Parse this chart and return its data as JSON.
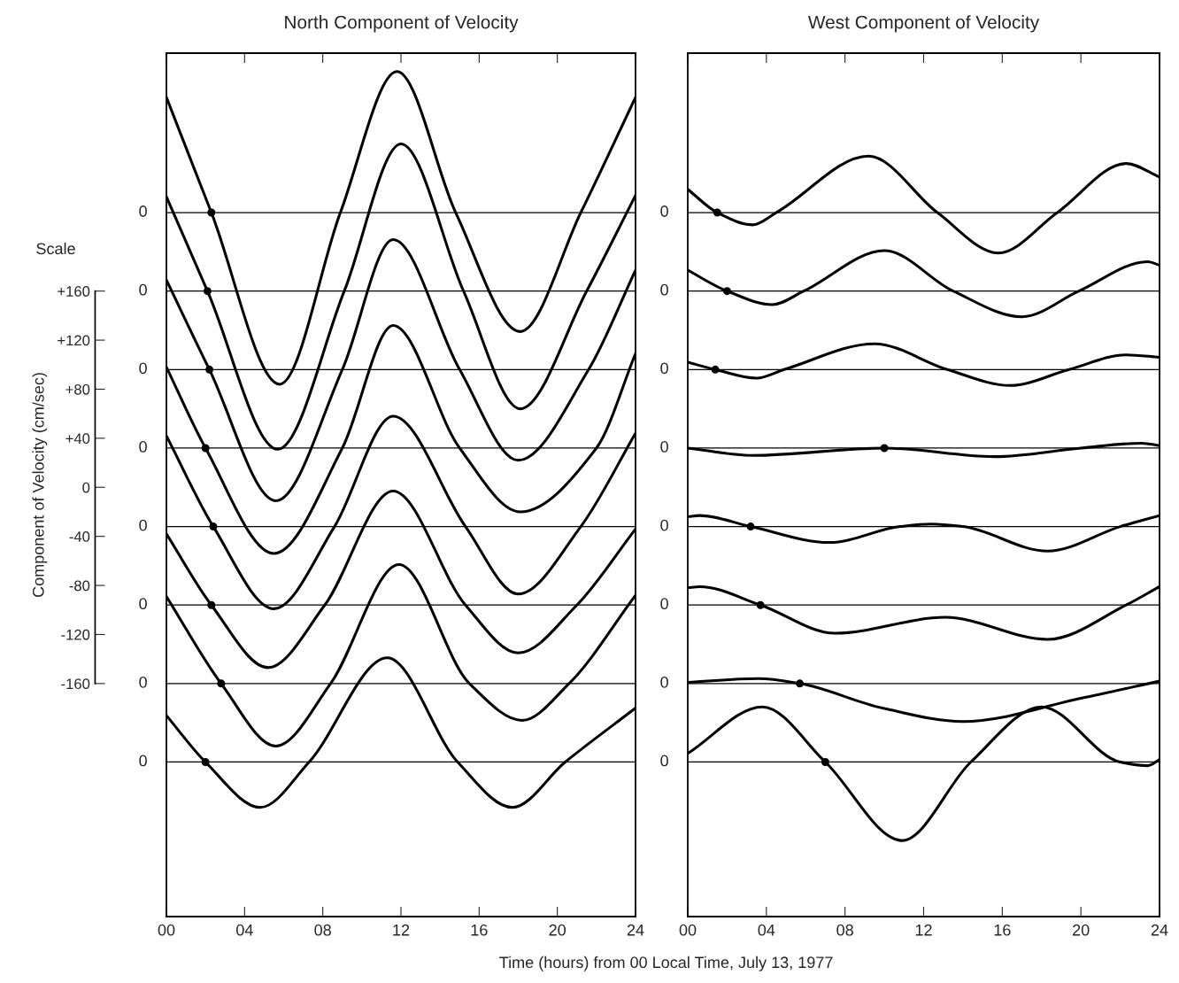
{
  "chart_data": [
    {
      "type": "line",
      "title": "North Component of Velocity",
      "xlabel": "Time (hours) from 00 Local Time, July 13, 1977",
      "ylabel": "Component of Velocity (cm/sec)",
      "annotations": [
        "Scale",
        "0",
        "0",
        "0",
        "0",
        "0",
        "0",
        "0",
        "0"
      ],
      "xlim": [
        0,
        24
      ],
      "xticks": [
        {
          "value": 0,
          "label": "00"
        },
        {
          "value": 4,
          "label": "04"
        },
        {
          "value": 8,
          "label": "08"
        },
        {
          "value": 12,
          "label": "12"
        },
        {
          "value": 16,
          "label": "16"
        },
        {
          "value": 20,
          "label": "20"
        },
        {
          "value": 24,
          "label": "24"
        }
      ],
      "ylim": [
        -350,
        354
      ],
      "ref_lines": [
        {
          "axis": "y",
          "value": 224
        },
        {
          "axis": "y",
          "value": 160
        },
        {
          "axis": "y",
          "value": 96
        },
        {
          "axis": "y",
          "value": 32
        },
        {
          "axis": "y",
          "value": -32
        },
        {
          "axis": "y",
          "value": -96
        },
        {
          "axis": "y",
          "value": -160
        },
        {
          "axis": "y",
          "value": -224
        }
      ],
      "yticks": [
        {
          "value": 160,
          "label": "+160"
        },
        {
          "value": 120,
          "label": "+120"
        },
        {
          "value": 80,
          "label": "+80"
        },
        {
          "value": 40,
          "label": "+40"
        },
        0,
        {
          "value": -40,
          "label": "-40"
        },
        {
          "value": -80,
          "label": "-80"
        },
        {
          "value": -120,
          "label": "-120"
        },
        {
          "value": -160,
          "label": "-160"
        }
      ],
      "legend": false,
      "line_style": "solid",
      "series": [
        {
          "color": "#000000",
          "x": [
            0,
            2.3,
            5.8,
            8.9,
            11.8,
            14.8,
            18.1,
            21.2,
            24
          ],
          "values": [
            318,
            224,
            84,
            224,
            339,
            224,
            127,
            224,
            318
          ]
        },
        {
          "color": "#000000",
          "x": [
            0,
            2.1,
            5.7,
            9.1,
            12.0,
            15.2,
            18.1,
            21.5,
            24
          ],
          "values": [
            237,
            160,
            31,
            160,
            280,
            160,
            64,
            160,
            238
          ]
        },
        {
          "color": "#000000",
          "x": [
            0,
            2.2,
            5.6,
            9.0,
            11.6,
            15.0,
            18.0,
            21.6,
            24
          ],
          "values": [
            169,
            96,
            -11,
            96,
            202,
            96,
            22,
            96,
            177
          ]
        },
        {
          "color": "#000000",
          "x": [
            0,
            2.0,
            5.5,
            9.0,
            11.6,
            15.0,
            18.1,
            22.0,
            24
          ],
          "values": [
            98,
            32,
            -54,
            32,
            132,
            32,
            -20,
            32,
            109
          ]
        },
        {
          "color": "#000000",
          "x": [
            0,
            2.4,
            5.5,
            8.6,
            11.6,
            15.3,
            18.0,
            21.2,
            24
          ],
          "values": [
            42,
            -32,
            -99,
            -32,
            58,
            -32,
            -87,
            -32,
            44
          ]
        },
        {
          "color": "#000000",
          "x": [
            0,
            2.3,
            5.2,
            8.1,
            11.6,
            15.3,
            18.0,
            21.0,
            24
          ],
          "values": [
            -38,
            -96,
            -147,
            -96,
            -3,
            -96,
            -135,
            -96,
            -34
          ]
        },
        {
          "color": "#000000",
          "x": [
            0,
            2.8,
            5.6,
            8.4,
            11.9,
            15.5,
            18.2,
            20.6,
            24
          ],
          "values": [
            -89,
            -160,
            -211,
            -160,
            -63,
            -160,
            -190,
            -160,
            -88
          ]
        },
        {
          "color": "#000000",
          "x": [
            0,
            2.0,
            4.8,
            7.3,
            11.3,
            14.9,
            17.7,
            20.4,
            24
          ],
          "values": [
            -186,
            -224,
            -261,
            -224,
            -139,
            -224,
            -261,
            -224,
            -180
          ]
        },
        {
          "type": "scatter",
          "marker": "circle",
          "color": "#000000",
          "x": [
            2.3,
            2.1,
            2.2,
            2.0,
            2.4,
            2.3,
            2.8,
            2.0
          ],
          "values": [
            224,
            160,
            96,
            32,
            -32,
            -96,
            -160,
            -224
          ]
        }
      ]
    },
    {
      "type": "line",
      "title": "West Component of Velocity",
      "tick_labels": "x",
      "xlim": [
        0,
        24
      ],
      "xticks": [
        {
          "value": 0,
          "label": "00"
        },
        {
          "value": 4,
          "label": "04"
        },
        {
          "value": 8,
          "label": "08"
        },
        {
          "value": 12,
          "label": "12"
        },
        {
          "value": 16,
          "label": "16"
        },
        {
          "value": 20,
          "label": "20"
        },
        {
          "value": 24,
          "label": "24"
        }
      ],
      "ylim": [
        -350,
        354
      ],
      "annotations": [
        "0",
        "0",
        "0",
        "0",
        "0",
        "0",
        "0",
        "0"
      ],
      "ref_lines": [
        {
          "axis": "y",
          "value": 224
        },
        {
          "axis": "y",
          "value": 160
        },
        {
          "axis": "y",
          "value": 96
        },
        {
          "axis": "y",
          "value": 32
        },
        {
          "axis": "y",
          "value": -32
        },
        {
          "axis": "y",
          "value": -96
        },
        {
          "axis": "y",
          "value": -160
        },
        {
          "axis": "y",
          "value": -224
        }
      ],
      "legend": false,
      "line_style": "solid",
      "series": [
        {
          "color": "#000000",
          "x": [
            0,
            1.5,
            3.3,
            4.5,
            9.2,
            12.7,
            15.8,
            18.8,
            22.3,
            24
          ],
          "values": [
            243,
            224,
            214,
            224,
            270,
            224,
            191,
            224,
            264,
            253
          ]
        },
        {
          "color": "#000000",
          "x": [
            0,
            2.0,
            4.3,
            5.9,
            10.0,
            13.5,
            17.0,
            19.9,
            23.4,
            24
          ],
          "values": [
            177,
            160,
            149,
            160,
            193,
            160,
            139,
            160,
            184,
            181
          ]
        },
        {
          "color": "#000000",
          "x": [
            0,
            1.4,
            3.5,
            4.9,
            9.5,
            13.2,
            16.4,
            19.4,
            22.3,
            24
          ],
          "values": [
            102,
            96,
            89,
            96,
            117,
            96,
            83,
            96,
            108,
            106
          ]
        },
        {
          "color": "#000000",
          "x": [
            0,
            3.3,
            10.0,
            15.6,
            20.0,
            23.1,
            24
          ],
          "values": [
            32,
            26,
            32,
            25,
            32,
            36,
            34
          ]
        },
        {
          "color": "#000000",
          "x": [
            0,
            0.6,
            3.2,
            7.2,
            10.8,
            12.4,
            14.0,
            18.3,
            22.0,
            24
          ],
          "values": [
            -24,
            -23,
            -32,
            -45,
            -32,
            -30,
            -32,
            -52,
            -32,
            -23
          ]
        },
        {
          "color": "#000000",
          "x": [
            0,
            0.6,
            3.7,
            7.5,
            13.1,
            18.3,
            22.3,
            24
          ],
          "values": [
            -82,
            -81,
            -96,
            -119,
            -106,
            -124,
            -96,
            -81
          ]
        },
        {
          "color": "#000000",
          "x": [
            0,
            3.6,
            5.7,
            9.9,
            14.0,
            20.0,
            24
          ],
          "values": [
            -159,
            -156,
            -160,
            -180,
            -191,
            -172,
            -158
          ]
        },
        {
          "color": "#000000",
          "x": [
            0,
            3.8,
            7.0,
            10.9,
            14.4,
            18.0,
            22.0,
            23.4,
            24
          ],
          "values": [
            -217,
            -179,
            -224,
            -288,
            -224,
            -179,
            -224,
            -227,
            -222
          ]
        },
        {
          "type": "scatter",
          "marker": "circle",
          "color": "#000000",
          "x": [
            1.5,
            2.0,
            1.4,
            10.0,
            3.2,
            3.7,
            5.7,
            7.0
          ],
          "values": [
            224,
            160,
            96,
            32,
            -32,
            -96,
            -160,
            -224
          ]
        }
      ]
    }
  ]
}
